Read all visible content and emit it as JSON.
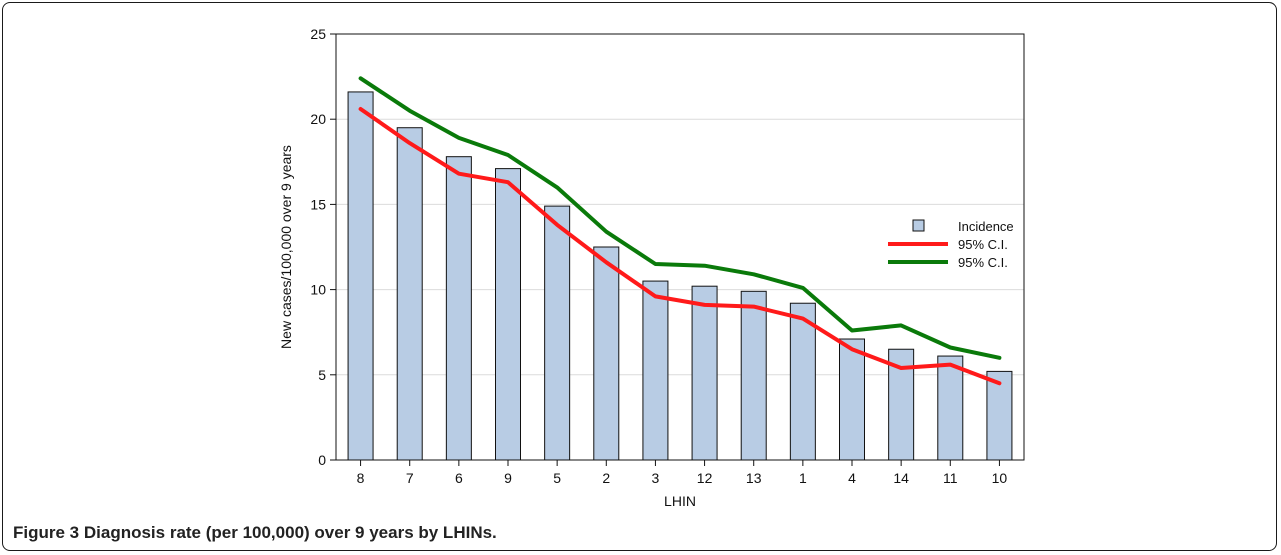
{
  "figure": {
    "caption_label": "Figure 3",
    "caption_text": "Diagnosis rate (per 100,000) over 9 years by LHINs."
  },
  "chart_data": {
    "type": "bar",
    "xlabel": "LHIN",
    "ylabel": "New cases/100,000 over 9 years",
    "categories": [
      "8",
      "7",
      "6",
      "9",
      "5",
      "2",
      "3",
      "12",
      "13",
      "1",
      "4",
      "14",
      "11",
      "10"
    ],
    "ylim": [
      0,
      25
    ],
    "yticks": [
      0,
      5,
      10,
      15,
      20,
      25
    ],
    "grid": true,
    "legend_position": "right",
    "series": [
      {
        "name": "Incidence",
        "kind": "bar",
        "color": "#b8cce4",
        "values": [
          21.6,
          19.5,
          17.8,
          17.1,
          14.9,
          12.5,
          10.5,
          10.2,
          9.9,
          9.2,
          7.1,
          6.5,
          6.1,
          5.2
        ]
      },
      {
        "name": "95% C.I.",
        "kind": "line",
        "color": "#ff1a1a",
        "values": [
          20.6,
          18.6,
          16.8,
          16.3,
          13.8,
          11.6,
          9.6,
          9.1,
          9.0,
          8.3,
          6.5,
          5.4,
          5.6,
          4.5
        ]
      },
      {
        "name": "95% C.I.",
        "kind": "line",
        "color": "#0a7a0a",
        "values": [
          22.4,
          20.5,
          18.9,
          17.9,
          16.0,
          13.4,
          11.5,
          11.4,
          10.9,
          10.1,
          7.6,
          7.9,
          6.6,
          6.0
        ]
      }
    ]
  }
}
